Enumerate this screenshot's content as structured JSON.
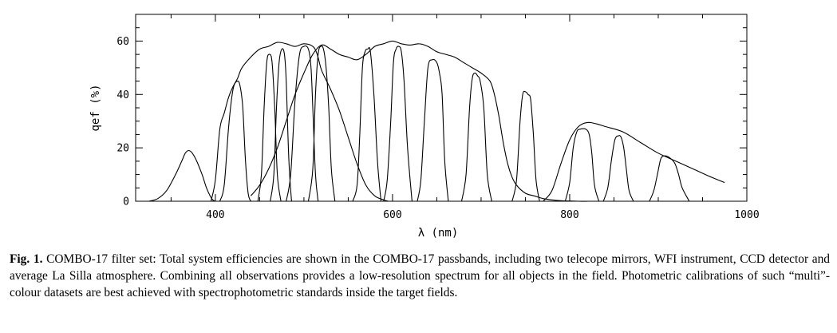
{
  "caption": {
    "label": "Fig. 1.",
    "text": "COMBO-17 filter set: Total system efficiencies are shown in the COMBO-17 passbands, including two telecope mirrors, WFI instrument, CCD detector and average La Silla atmosphere. Combining all observations provides a low-resolution spectrum for all objects in the field. Photometric calibrations of such “multi”-colour datasets are best achieved with spectrophotometric standards inside the target fields."
  },
  "chart_data": {
    "type": "line",
    "title": "",
    "xlabel": "λ  (nm)",
    "ylabel": "qef  (%)",
    "xlim": [
      310,
      1000
    ],
    "ylim": [
      0,
      70
    ],
    "xticks": [
      400,
      600,
      800,
      1000
    ],
    "yticks": [
      0,
      20,
      40,
      60
    ],
    "grid": false,
    "legend": "none",
    "series": [
      {
        "x": [
          325,
          335,
          345,
          355,
          362,
          366,
          370,
          374,
          379,
          385,
          390,
          394,
          397,
          400
        ],
        "y": [
          0,
          1,
          4,
          10,
          15,
          18,
          19,
          18,
          15,
          10,
          5,
          2,
          0.5,
          0
        ]
      },
      {
        "x": [
          395,
          400,
          405,
          410,
          415,
          420,
          425,
          430,
          440,
          450,
          460,
          470,
          480,
          490,
          500,
          510,
          515,
          520,
          530,
          540,
          550,
          560,
          570,
          580,
          590,
          595
        ],
        "y": [
          0,
          8,
          27,
          33,
          39,
          43,
          46,
          50,
          54,
          57,
          58,
          59.5,
          59,
          58,
          59,
          58,
          55,
          49,
          42,
          34,
          24,
          14,
          6,
          2,
          0.5,
          0
        ]
      },
      {
        "x": [
          405,
          410,
          415,
          420,
          425,
          428,
          431,
          434,
          437,
          440
        ],
        "y": [
          0,
          6,
          28,
          42,
          45,
          43,
          35,
          15,
          3,
          0
        ]
      },
      {
        "x": [
          448,
          452,
          455,
          458,
          461,
          464,
          467,
          470,
          474
        ],
        "y": [
          0,
          10,
          35,
          52,
          55,
          52,
          35,
          10,
          0
        ]
      },
      {
        "x": [
          462,
          466,
          469,
          472,
          475,
          478,
          480,
          483,
          486
        ],
        "y": [
          0,
          10,
          35,
          52,
          57,
          55,
          45,
          15,
          0
        ]
      },
      {
        "x": [
          480,
          485,
          490,
          495,
          500,
          505,
          508,
          510,
          513,
          516
        ],
        "y": [
          0,
          10,
          38,
          55,
          58,
          57,
          50,
          35,
          10,
          0
        ]
      },
      {
        "x": [
          440,
          450,
          460,
          470,
          480,
          490,
          500,
          510,
          520,
          530,
          540,
          550,
          560,
          570,
          580,
          590,
          600,
          610,
          620,
          630,
          640,
          650,
          660,
          670,
          680,
          690,
          700,
          710,
          715,
          720,
          725,
          730,
          735,
          740,
          750,
          760,
          770,
          780,
          790,
          800,
          810,
          820
        ],
        "y": [
          2,
          6,
          12,
          20,
          30,
          40,
          48,
          55,
          58.5,
          57,
          55,
          54,
          53,
          55,
          58,
          59,
          60,
          59,
          58.5,
          59,
          58,
          56,
          55,
          54,
          52,
          50,
          48,
          45,
          40,
          32,
          22,
          14,
          9,
          6,
          3,
          2,
          1,
          0.5,
          0.2,
          0.1,
          0,
          0
        ]
      },
      {
        "x": [
          505,
          510,
          513,
          516,
          519,
          522,
          525,
          528,
          531,
          535
        ],
        "y": [
          0,
          12,
          40,
          55,
          58,
          57,
          50,
          35,
          12,
          0
        ]
      },
      {
        "x": [
          555,
          560,
          563,
          566,
          569,
          572,
          575,
          579,
          583,
          587
        ],
        "y": [
          0,
          6,
          25,
          50,
          56,
          57,
          56,
          40,
          15,
          0
        ]
      },
      {
        "x": [
          590,
          594,
          598,
          601,
          604,
          607,
          610,
          613,
          617,
          622
        ],
        "y": [
          0,
          8,
          30,
          52,
          57,
          58,
          56,
          45,
          20,
          0
        ]
      },
      {
        "x": [
          628,
          632,
          636,
          640,
          645,
          650,
          653,
          656,
          659,
          663
        ],
        "y": [
          0,
          8,
          30,
          50,
          53,
          52,
          48,
          40,
          15,
          0
        ]
      },
      {
        "x": [
          678,
          683,
          687,
          690,
          693,
          696,
          699,
          703,
          707,
          712
        ],
        "y": [
          0,
          10,
          35,
          46,
          48,
          47,
          45,
          35,
          10,
          0
        ]
      },
      {
        "x": [
          735,
          740,
          744,
          747,
          750,
          753,
          756,
          759,
          762,
          766
        ],
        "y": [
          0,
          8,
          30,
          40,
          41,
          40,
          38,
          25,
          8,
          0
        ]
      },
      {
        "x": [
          770,
          780,
          790,
          800,
          810,
          820,
          830,
          840,
          860,
          880,
          900,
          920,
          940,
          960,
          975
        ],
        "y": [
          0,
          4,
          14,
          23,
          28,
          29.5,
          29,
          28,
          26,
          22,
          18,
          15,
          12,
          9,
          7
        ]
      },
      {
        "x": [
          795,
          800,
          804,
          808,
          812,
          818,
          822,
          825,
          828,
          833
        ],
        "y": [
          0,
          7,
          20,
          26,
          27,
          27,
          25,
          18,
          6,
          0
        ]
      },
      {
        "x": [
          838,
          843,
          847,
          851,
          855,
          858,
          861,
          864,
          867,
          872
        ],
        "y": [
          0,
          5,
          15,
          23,
          24.5,
          24,
          20,
          12,
          4,
          0
        ]
      },
      {
        "x": [
          890,
          895,
          899,
          903,
          908,
          914,
          919,
          923,
          927,
          935
        ],
        "y": [
          0,
          4,
          10,
          16,
          17,
          16,
          14,
          10,
          5,
          0
        ]
      }
    ]
  }
}
